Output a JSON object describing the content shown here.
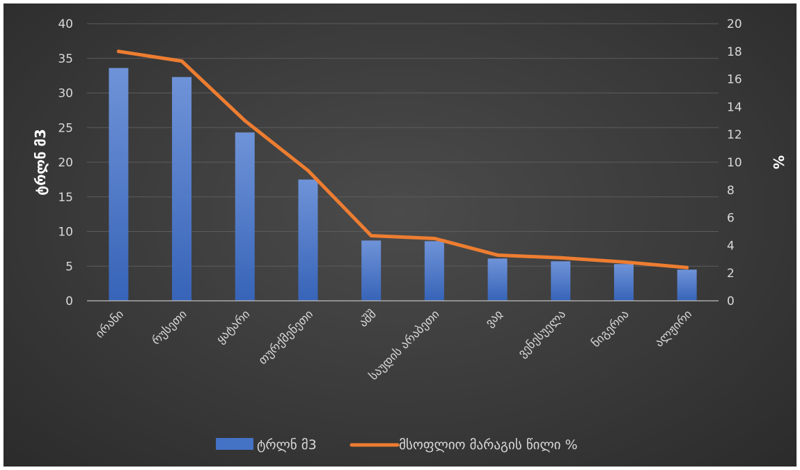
{
  "chart_data": {
    "type": "bar",
    "categories": [
      "ირანი",
      "რუსეთი",
      "ყატარი",
      "თურქმენეთი",
      "აშშ",
      "საუდის არაბეთი",
      "ვაჲ",
      "ვენესუელა",
      "ნიგერია",
      "ალჟირი"
    ],
    "series": [
      {
        "name": "ტრლნ მ3",
        "type": "bar",
        "axis": "left",
        "color": "#4472c4",
        "values": [
          33.6,
          32.3,
          24.3,
          17.5,
          8.7,
          8.6,
          6.1,
          5.7,
          5.3,
          4.5
        ]
      },
      {
        "name": "მსოფლიო მარაგის წილი %",
        "type": "line",
        "axis": "right",
        "color": "#ed7d31",
        "values": [
          18.0,
          17.3,
          13.0,
          9.4,
          4.7,
          4.5,
          3.3,
          3.1,
          2.8,
          2.4
        ]
      }
    ],
    "ylabel": "ტრლნ მ3",
    "y2label": "%",
    "ylim": [
      0,
      40
    ],
    "y2lim": [
      0,
      20
    ],
    "yticks": [
      "0",
      "5",
      "10",
      "15",
      "20",
      "25",
      "30",
      "35",
      "40"
    ],
    "y2ticks": [
      "0",
      "2",
      "4",
      "6",
      "8",
      "10",
      "12",
      "14",
      "16",
      "18",
      "20"
    ],
    "grid": true,
    "legend_position": "bottom"
  }
}
